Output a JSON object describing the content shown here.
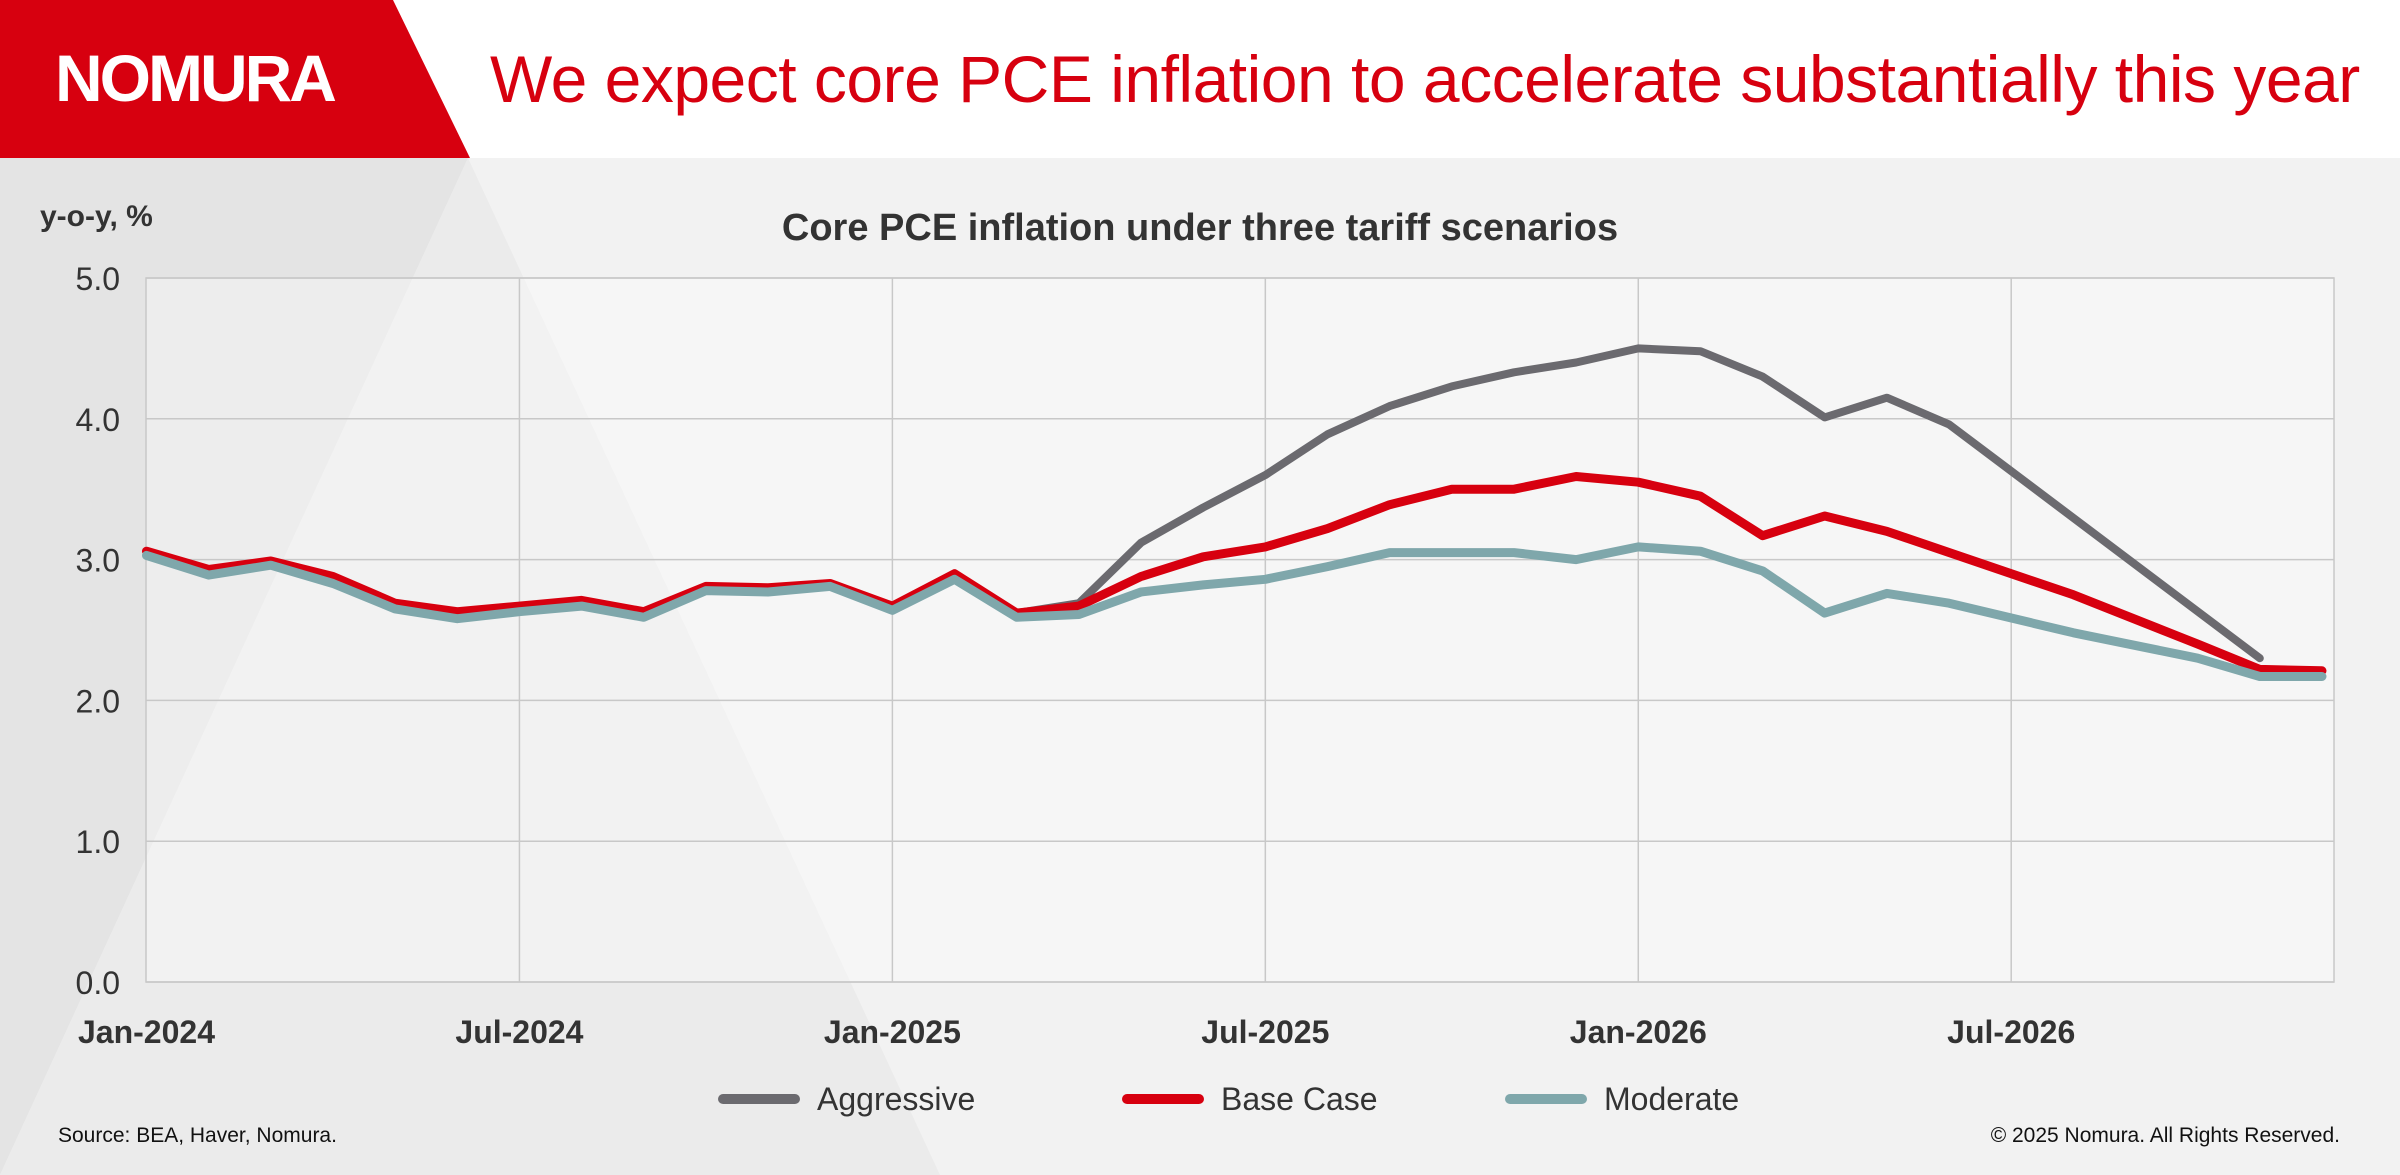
{
  "brand": {
    "logo_text": "NOMURA",
    "accent_color": "#d7000f"
  },
  "headline": "We expect core PCE inflation to accelerate substantially this year",
  "footer": {
    "source": "Source: BEA, Haver, Nomura.",
    "copyright": "© 2025 Nomura. All Rights Reserved."
  },
  "chart_data": {
    "type": "line",
    "title": "Core PCE inflation under three tariff scenarios",
    "ylabel": "y-o-y, %",
    "xlabel": "",
    "ylim": [
      0,
      5
    ],
    "yticks": [
      "0.0",
      "1.0",
      "2.0",
      "3.0",
      "4.0",
      "5.0"
    ],
    "x": [
      "2024-01",
      "2024-02",
      "2024-03",
      "2024-04",
      "2024-05",
      "2024-06",
      "2024-07",
      "2024-08",
      "2024-09",
      "2024-10",
      "2024-11",
      "2024-12",
      "2025-01",
      "2025-02",
      "2025-03",
      "2025-04",
      "2025-05",
      "2025-06",
      "2025-07",
      "2025-08",
      "2025-09",
      "2025-10",
      "2025-11",
      "2025-12",
      "2026-01",
      "2026-02",
      "2026-03",
      "2026-04",
      "2026-05",
      "2026-06",
      "2026-07",
      "2026-08",
      "2026-09",
      "2026-10",
      "2026-11",
      "2026-12"
    ],
    "xticks": [
      {
        "label": "Jan-2024",
        "index": 0
      },
      {
        "label": "Jul-2024",
        "index": 6
      },
      {
        "label": "Jan-2025",
        "index": 12
      },
      {
        "label": "Jul-2025",
        "index": 18
      },
      {
        "label": "Jan-2026",
        "index": 24
      },
      {
        "label": "Jul-2026",
        "index": 30
      }
    ],
    "grid": true,
    "legend_position": "bottom",
    "series": [
      {
        "name": "Aggressive",
        "color": "#6b6a6f",
        "values": [
          3.06,
          2.93,
          2.99,
          2.88,
          2.69,
          2.63,
          2.67,
          2.71,
          2.63,
          2.81,
          2.8,
          2.83,
          2.67,
          2.9,
          2.62,
          2.69,
          3.12,
          3.37,
          3.6,
          3.89,
          4.09,
          4.23,
          4.33,
          4.4,
          4.5,
          4.48,
          4.3,
          4.01,
          4.15,
          3.96,
          null,
          null,
          null,
          null,
          2.3,
          null
        ]
      },
      {
        "name": "Base Case",
        "color": "#d7000f",
        "values": [
          3.06,
          2.93,
          2.99,
          2.88,
          2.69,
          2.63,
          2.67,
          2.71,
          2.63,
          2.81,
          2.8,
          2.83,
          2.67,
          2.9,
          2.62,
          2.67,
          2.88,
          3.02,
          3.09,
          3.22,
          3.39,
          3.5,
          3.5,
          3.59,
          3.55,
          3.45,
          3.17,
          3.31,
          3.2,
          null,
          null,
          2.75,
          null,
          2.4,
          2.22,
          2.21
        ]
      },
      {
        "name": "Moderate",
        "color": "#7fa7ab",
        "values": [
          3.03,
          2.89,
          2.96,
          2.83,
          2.65,
          2.58,
          2.63,
          2.67,
          2.59,
          2.78,
          2.77,
          2.81,
          2.64,
          2.86,
          2.59,
          2.61,
          2.77,
          2.82,
          2.86,
          2.95,
          3.05,
          3.05,
          3.05,
          3.0,
          3.09,
          3.06,
          2.92,
          2.62,
          2.76,
          2.69,
          null,
          2.48,
          null,
          2.3,
          2.17,
          2.17
        ]
      }
    ]
  }
}
